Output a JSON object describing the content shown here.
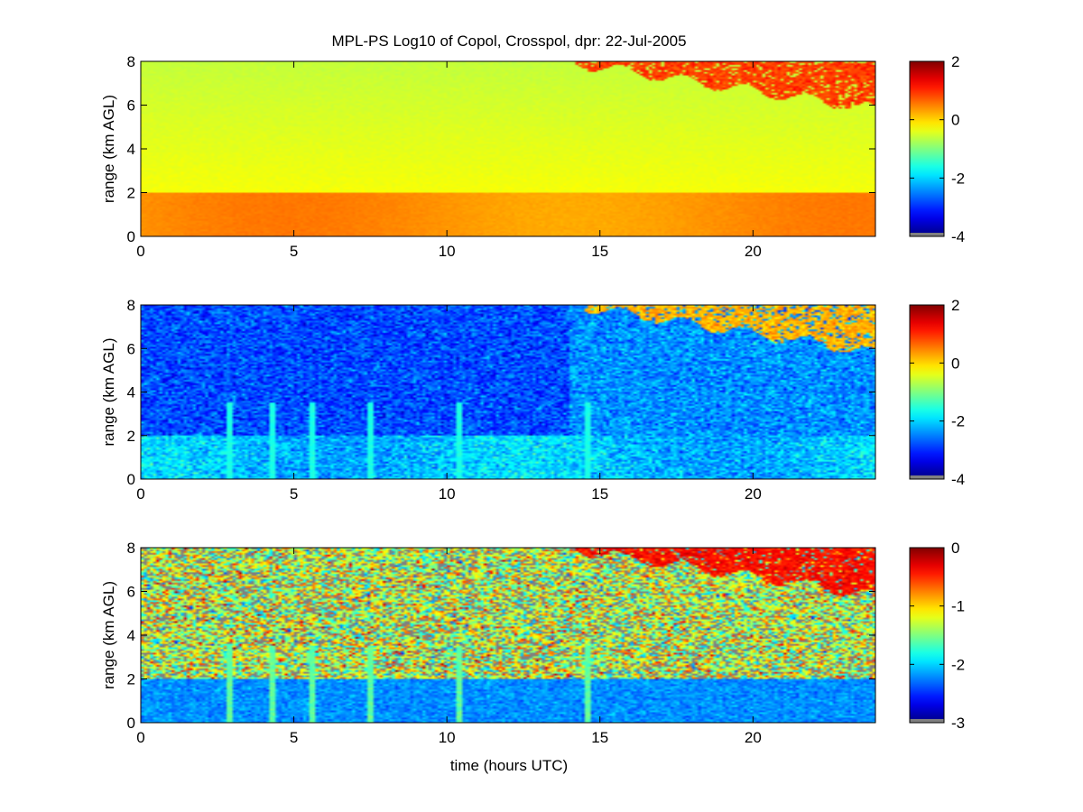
{
  "figure": {
    "title": "MPL-PS Log10 of Copol, Crosspol, dpr: 22-Jul-2005",
    "xlabel": "time (hours UTC)"
  },
  "chart_data": [
    {
      "type": "heatmap",
      "panel": "top",
      "ylabel": "range (km AGL)",
      "xlim": [
        0,
        24
      ],
      "ylim": [
        0,
        8
      ],
      "xticks": [
        "0",
        "5",
        "10",
        "15",
        "20"
      ],
      "yticks": [
        "0",
        "2",
        "4",
        "6",
        "8"
      ],
      "colorbar": {
        "range": [
          -4,
          2
        ],
        "ticks": [
          "-4",
          "-2",
          "0",
          "2"
        ],
        "colormap": "jet"
      },
      "description_values": {
        "boundary_layer_top_km": 2.0,
        "boundary_layer_log10": 0.4,
        "free_troposphere_log10": -0.3,
        "cloud_start_hour": 14.2,
        "cloud_base_km_at_start": 7.9,
        "cloud_base_km_at_end": 5.8,
        "cloud_log10": 0.9
      }
    },
    {
      "type": "heatmap",
      "panel": "middle",
      "ylabel": "range (km AGL)",
      "xlim": [
        0,
        24
      ],
      "ylim": [
        0,
        8
      ],
      "xticks": [
        "0",
        "5",
        "10",
        "15",
        "20"
      ],
      "yticks": [
        "0",
        "2",
        "4",
        "6",
        "8"
      ],
      "colorbar": {
        "range": [
          -4,
          2
        ],
        "ticks": [
          "-4",
          "-2",
          "0",
          "2"
        ],
        "colormap": "jet"
      },
      "description_values": {
        "boundary_layer_top_km": 2.0,
        "boundary_layer_log10": -2.1,
        "free_troposphere_log10": -2.8,
        "cloud_start_hour": 14.5,
        "cloud_log10": 0.2,
        "streak_hours": [
          2.9,
          4.3,
          5.6,
          7.5,
          10.4,
          14.6
        ]
      }
    },
    {
      "type": "heatmap",
      "panel": "bottom",
      "ylabel": "range (km AGL)",
      "xlim": [
        0,
        24
      ],
      "ylim": [
        0,
        8
      ],
      "xticks": [
        "0",
        "5",
        "10",
        "15",
        "20"
      ],
      "yticks": [
        "0",
        "2",
        "4",
        "6",
        "8"
      ],
      "colorbar": {
        "range": [
          -3,
          0
        ],
        "ticks": [
          "-3",
          "-2",
          "-1",
          "0"
        ],
        "colormap": "jet"
      },
      "description_values": {
        "boundary_layer_top_km": 2.0,
        "boundary_layer_log10": -2.2,
        "free_troposphere_log10": -1.3,
        "cloud_start_hour": 14.2,
        "cloud_log10": -0.4,
        "streak_hours": [
          2.9,
          4.3,
          5.6,
          7.5,
          10.4,
          14.6
        ]
      }
    }
  ]
}
